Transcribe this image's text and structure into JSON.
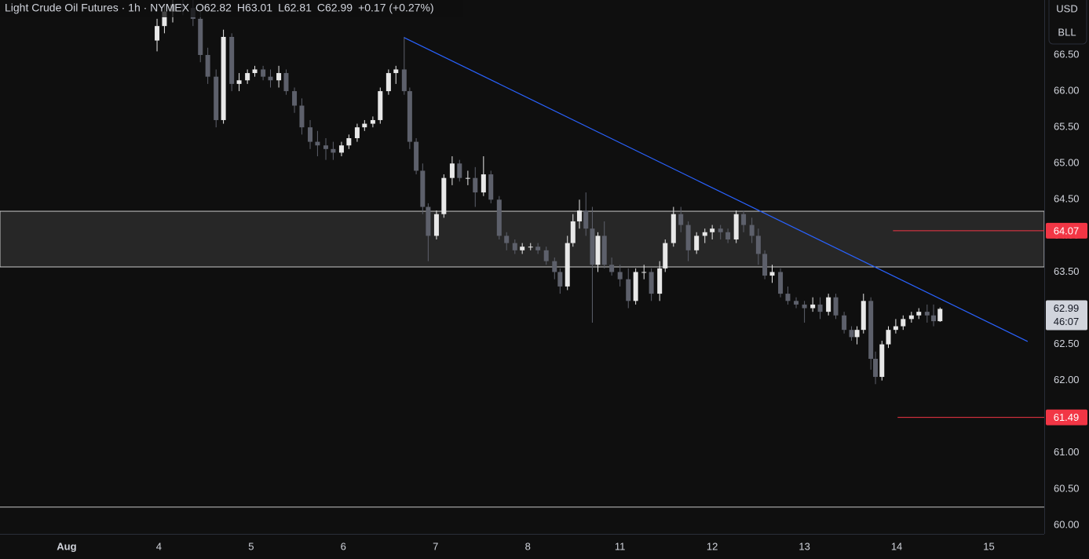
{
  "chart_data": {
    "type": "candlestick",
    "title": "Light Crude Oil Futures · 1h · NYMEX",
    "legend_values": [
      "O62.82",
      "H63.01",
      "L62.81",
      "C62.99",
      "+0.17 (+0.27%)"
    ],
    "currency_buttons": [
      "USD",
      "BLL"
    ],
    "up_color": "#e8e8e8",
    "down_color": "#5d606b",
    "xlim": [
      -0.723,
      10.6
    ],
    "ylim": [
      59.88,
      67.26
    ],
    "xticks": [
      {
        "value": 0,
        "label": "Aug"
      },
      {
        "value": 1,
        "label": "4"
      },
      {
        "value": 2,
        "label": "5"
      },
      {
        "value": 3,
        "label": "6"
      },
      {
        "value": 4,
        "label": "7"
      },
      {
        "value": 5,
        "label": "8"
      },
      {
        "value": 6,
        "label": "11"
      },
      {
        "value": 7,
        "label": "12"
      },
      {
        "value": 8,
        "label": "13"
      },
      {
        "value": 9,
        "label": "14"
      },
      {
        "value": 10,
        "label": "15"
      }
    ],
    "yticks": [
      {
        "value": 60,
        "label": "60.00"
      },
      {
        "value": 60.5,
        "label": "60.50"
      },
      {
        "value": 61,
        "label": "61.00"
      },
      {
        "value": 61.5,
        "label": "61.50"
      },
      {
        "value": 62,
        "label": "62.00"
      },
      {
        "value": 62.5,
        "label": "62.50"
      },
      {
        "value": 63,
        "label": "63.00"
      },
      {
        "value": 63.5,
        "label": "63.50"
      },
      {
        "value": 64,
        "label": "64.00"
      },
      {
        "value": 64.5,
        "label": "64.50"
      },
      {
        "value": 65,
        "label": "65.00"
      },
      {
        "value": 65.5,
        "label": "65.50"
      },
      {
        "value": 66,
        "label": "66.00"
      },
      {
        "value": 66.5,
        "label": "66.50"
      }
    ],
    "x": [
      0.98,
      1.06,
      1.15,
      1.26,
      1.37,
      1.45,
      1.53,
      1.62,
      1.7,
      1.79,
      1.87,
      1.96,
      2.04,
      2.13,
      2.21,
      2.3,
      2.38,
      2.47,
      2.55,
      2.64,
      2.72,
      2.81,
      2.89,
      2.98,
      3.06,
      3.15,
      3.23,
      3.32,
      3.4,
      3.49,
      3.57,
      3.66,
      3.72,
      3.79,
      3.86,
      3.92,
      4.01,
      4.09,
      4.18,
      4.26,
      4.35,
      4.43,
      4.52,
      4.6,
      4.69,
      4.77,
      4.86,
      4.94,
      5.03,
      5.11,
      5.2,
      5.29,
      5.35,
      5.43,
      5.49,
      5.56,
      5.63,
      5.7,
      5.76,
      5.83,
      5.91,
      6.0,
      6.09,
      6.17,
      6.26,
      6.34,
      6.43,
      6.49,
      6.58,
      6.66,
      6.74,
      6.83,
      6.92,
      7.0,
      7.09,
      7.17,
      7.26,
      7.34,
      7.43,
      7.5,
      7.57,
      7.65,
      7.74,
      7.82,
      7.91,
      8.0,
      8.09,
      8.17,
      8.26,
      8.34,
      8.43,
      8.51,
      8.57,
      8.64,
      8.72,
      8.77,
      8.84,
      8.91,
      8.99,
      9.07,
      9.16,
      9.24,
      9.33,
      9.4,
      9.47
    ],
    "open": [
      66.7,
      66.9,
      67.1,
      67.2,
      67.15,
      67.0,
      66.5,
      66.2,
      65.6,
      66.75,
      66.1,
      66.15,
      66.25,
      66.3,
      66.2,
      66.15,
      66.25,
      66.0,
      65.8,
      65.5,
      65.3,
      65.25,
      65.2,
      65.15,
      65.25,
      65.35,
      65.5,
      65.55,
      65.6,
      66.0,
      66.25,
      66.3,
      66.0,
      65.3,
      64.9,
      64.4,
      64.0,
      64.3,
      64.8,
      65.0,
      64.8,
      64.8,
      64.6,
      64.85,
      64.5,
      64.0,
      63.9,
      63.8,
      63.85,
      63.85,
      63.8,
      63.65,
      63.5,
      63.3,
      63.9,
      64.2,
      64.35,
      64.1,
      63.6,
      64.0,
      63.6,
      63.5,
      63.4,
      63.1,
      63.5,
      63.5,
      63.2,
      63.55,
      63.9,
      64.3,
      64.15,
      63.8,
      64.0,
      64.05,
      64.1,
      64.05,
      63.95,
      64.3,
      64.15,
      64.0,
      63.75,
      63.45,
      63.5,
      63.2,
      63.1,
      63.05,
      63.0,
      63.05,
      62.95,
      63.15,
      62.9,
      62.7,
      62.6,
      62.7,
      63.1,
      62.3,
      62.05,
      62.5,
      62.7,
      62.75,
      62.85,
      62.9,
      62.95,
      62.9,
      62.82
    ],
    "high": [
      67.0,
      67.2,
      67.3,
      67.35,
      67.3,
      67.1,
      66.6,
      66.3,
      66.85,
      66.8,
      66.25,
      66.3,
      66.35,
      66.35,
      66.3,
      66.35,
      66.3,
      66.05,
      65.9,
      65.6,
      65.45,
      65.35,
      65.3,
      65.3,
      65.4,
      65.55,
      65.6,
      65.65,
      66.05,
      66.3,
      66.35,
      66.75,
      66.05,
      65.35,
      65.0,
      64.45,
      64.35,
      64.85,
      65.1,
      65.05,
      64.9,
      64.95,
      65.1,
      64.9,
      64.55,
      64.05,
      63.95,
      63.9,
      63.9,
      63.9,
      63.85,
      63.7,
      63.55,
      64.0,
      64.3,
      64.5,
      64.6,
      64.4,
      64.05,
      64.2,
      63.7,
      63.6,
      63.55,
      63.55,
      63.6,
      63.55,
      63.65,
      63.95,
      64.4,
      64.4,
      64.2,
      64.05,
      64.1,
      64.15,
      64.15,
      64.1,
      64.35,
      64.35,
      64.25,
      64.1,
      63.8,
      63.6,
      63.55,
      63.3,
      63.15,
      63.1,
      63.15,
      63.15,
      63.2,
      63.2,
      62.95,
      62.75,
      62.75,
      63.2,
      63.15,
      62.4,
      62.55,
      62.75,
      62.85,
      62.9,
      62.95,
      63.0,
      63.05,
      63.05,
      63.01
    ],
    "low": [
      66.55,
      66.8,
      66.95,
      67.05,
      66.9,
      66.4,
      66.1,
      65.5,
      65.55,
      66.0,
      66.0,
      66.1,
      66.2,
      66.15,
      66.05,
      66.05,
      65.95,
      65.7,
      65.4,
      65.2,
      65.1,
      65.05,
      65.05,
      65.1,
      65.2,
      65.3,
      65.45,
      65.5,
      65.55,
      65.95,
      66.1,
      65.95,
      65.2,
      64.85,
      64.3,
      63.65,
      63.95,
      64.25,
      64.7,
      64.75,
      64.7,
      64.4,
      64.55,
      64.45,
      63.95,
      63.8,
      63.75,
      63.75,
      63.8,
      63.75,
      63.6,
      63.4,
      63.2,
      63.25,
      63.85,
      64.1,
      64.0,
      62.8,
      63.5,
      63.55,
      63.45,
      63.3,
      63.0,
      63.05,
      63.4,
      63.1,
      63.1,
      63.5,
      63.85,
      64.05,
      63.65,
      63.75,
      63.9,
      63.95,
      63.95,
      63.9,
      63.9,
      64.05,
      63.9,
      63.6,
      63.4,
      63.35,
      63.15,
      63.05,
      63.0,
      62.8,
      62.95,
      62.85,
      62.9,
      62.85,
      62.65,
      62.55,
      62.5,
      62.65,
      62.15,
      61.95,
      62.0,
      62.45,
      62.65,
      62.7,
      62.8,
      62.85,
      62.8,
      62.75,
      62.81
    ],
    "close": [
      66.9,
      67.1,
      67.2,
      67.15,
      67.0,
      66.5,
      66.2,
      65.6,
      66.75,
      66.1,
      66.15,
      66.25,
      66.3,
      66.2,
      66.15,
      66.25,
      66.0,
      65.8,
      65.5,
      65.3,
      65.25,
      65.2,
      65.15,
      65.25,
      65.35,
      65.5,
      65.55,
      65.6,
      66.0,
      66.25,
      66.3,
      66.0,
      65.3,
      64.9,
      64.4,
      64.0,
      64.3,
      64.8,
      65.0,
      64.8,
      64.8,
      64.6,
      64.85,
      64.5,
      64.0,
      63.9,
      63.8,
      63.85,
      63.85,
      63.8,
      63.65,
      63.5,
      63.3,
      63.9,
      64.2,
      64.35,
      64.1,
      63.6,
      64.0,
      63.6,
      63.5,
      63.4,
      63.1,
      63.5,
      63.5,
      63.2,
      63.55,
      63.9,
      64.3,
      64.15,
      63.8,
      64.0,
      64.05,
      64.1,
      64.05,
      63.95,
      64.3,
      64.15,
      64.0,
      63.75,
      63.45,
      63.5,
      63.2,
      63.1,
      63.05,
      63.0,
      63.05,
      62.95,
      63.15,
      62.9,
      62.7,
      62.6,
      62.7,
      63.1,
      62.3,
      62.05,
      62.5,
      62.7,
      62.75,
      62.85,
      62.9,
      62.95,
      62.9,
      62.82,
      62.99
    ],
    "zone": {
      "low": 63.57,
      "high": 64.34,
      "color": "#ffffff"
    },
    "support_level": 60.25,
    "trendline": {
      "x": [
        3.66,
        10.42
      ],
      "y": [
        66.74,
        62.54
      ],
      "color": "#2962ff"
    },
    "levels": [
      {
        "value": 64.07,
        "from": 8.96,
        "color": "#f23645"
      },
      {
        "value": 61.49,
        "from": 9.01,
        "color": "#f23645"
      }
    ],
    "current_price": {
      "value": 62.99,
      "countdown": "46:07"
    }
  }
}
